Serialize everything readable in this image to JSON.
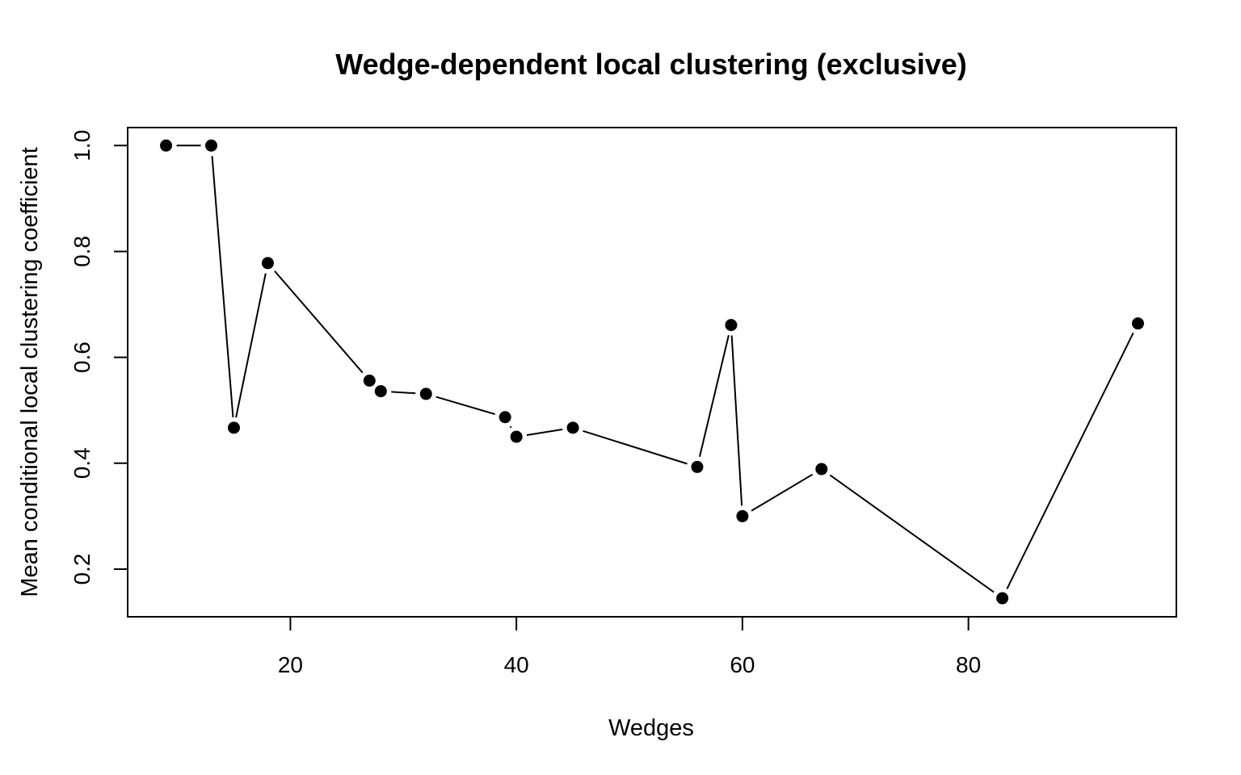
{
  "chart_data": {
    "type": "scatter",
    "title": "Wedge-dependent local clustering (exclusive)",
    "xlabel": "Wedges",
    "ylabel": "Mean conditional local clustering coefficient",
    "xlim": [
      5.6,
      98.4
    ],
    "ylim": [
      0.11,
      1.034
    ],
    "xticks": [
      20,
      40,
      60,
      80
    ],
    "yticks": [
      0.2,
      0.4,
      0.6,
      0.8,
      1.0
    ],
    "xtick_labels": [
      "20",
      "40",
      "60",
      "80"
    ],
    "ytick_labels": [
      "0.2",
      "0.4",
      "0.6",
      "0.8",
      "1.0"
    ],
    "grid": false,
    "line_color": "#000000",
    "point_color": "#000000",
    "series": [
      {
        "x": [
          9,
          13,
          15,
          18,
          27,
          28,
          32,
          39,
          40,
          45,
          56,
          59,
          60,
          67,
          83,
          95
        ],
        "y": [
          1.0,
          1.0,
          0.467,
          0.778,
          0.556,
          0.536,
          0.531,
          0.487,
          0.45,
          0.467,
          0.393,
          0.661,
          0.3,
          0.389,
          0.145,
          0.664
        ]
      }
    ]
  }
}
